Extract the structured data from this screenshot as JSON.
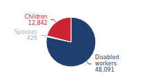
{
  "chart_data": {
    "type": "pie",
    "categories": [
      "Disabled\nworkers",
      "Spouses",
      "Children"
    ],
    "values": [
      48091,
      426,
      12842
    ],
    "value_labels": [
      "48,091",
      "426",
      "12,842"
    ],
    "colors": [
      "#1e3f6f",
      "#9ab0c8",
      "#cc2233"
    ],
    "data_labels": true
  }
}
